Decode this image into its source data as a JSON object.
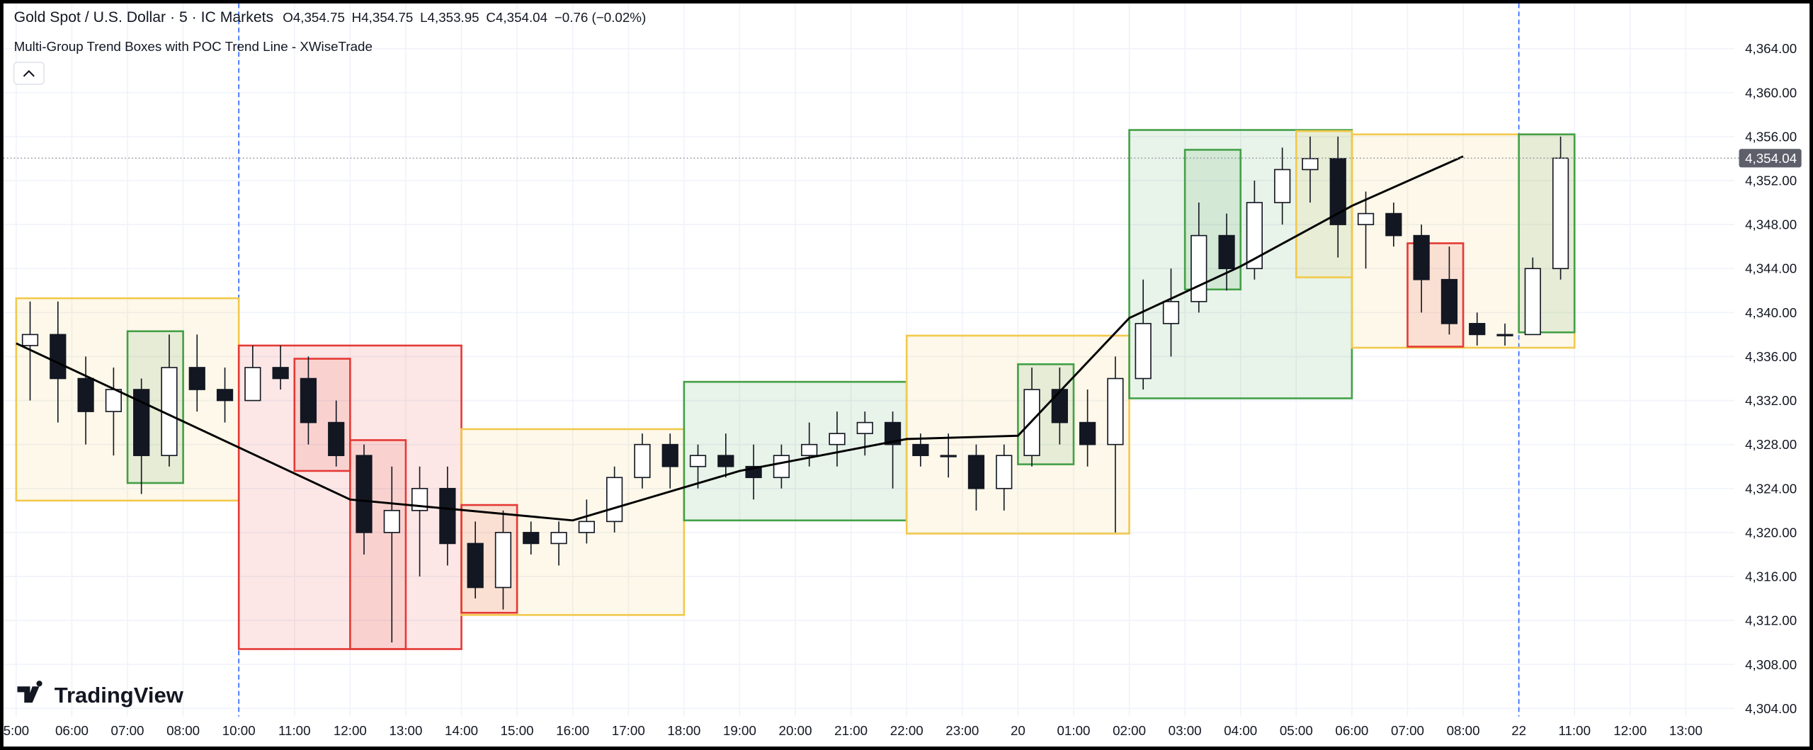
{
  "legend": {
    "title": "Gold Spot / U.S. Dollar · 5 · IC Markets",
    "values": [
      {
        "key": "O",
        "value": "4,354.75"
      },
      {
        "key": "H",
        "value": "4,354.75"
      },
      {
        "key": "L",
        "value": "4,353.95"
      },
      {
        "key": "C",
        "value": "4,354.04"
      }
    ],
    "change": "−0.76 (−0.02%)"
  },
  "indicator": "Multi-Group Trend Boxes with POC Trend Line - XWiseTrade",
  "logo": "TradingView",
  "chart_data": {
    "type": "candlestick",
    "categories": [
      "5:00",
      null,
      "06:00",
      null,
      "07:00",
      null,
      "08:00",
      null,
      "10:00",
      null,
      "11:00",
      null,
      "12:00",
      null,
      "13:00",
      null,
      "14:00",
      null,
      "15:00",
      null,
      "16:00",
      null,
      "17:00",
      null,
      "18:00",
      null,
      "19:00",
      null,
      "20:00",
      null,
      "21:00",
      null,
      "22:00",
      null,
      "23:00",
      null,
      "20",
      null,
      "01:00",
      null,
      "02:00",
      null,
      "03:00",
      null,
      "04:00",
      null,
      "05:00",
      null,
      "06:00",
      null,
      "07:00",
      null,
      "08:00",
      null,
      "22",
      null,
      "11:00",
      null,
      "12:00",
      null,
      "13:00"
    ],
    "open": [
      4337,
      4338,
      4334,
      4331,
      4333,
      4327,
      4335,
      4333,
      4332,
      4335,
      4334,
      4330,
      4327,
      4320,
      4322,
      4324,
      4319,
      4315,
      4320,
      4319,
      4320,
      4321,
      4325,
      4328,
      4326,
      4327,
      4326,
      4325,
      4327,
      4328,
      4329,
      4330,
      4328,
      4327,
      4327,
      4324,
      4327,
      4333,
      4330,
      4328,
      4334,
      4339,
      4341,
      4347,
      4344,
      4350,
      4353,
      4354,
      4348,
      4349,
      4347,
      4343,
      4339,
      4338,
      4338,
      4344,
      null,
      null,
      null,
      null,
      null
    ],
    "high": [
      4341,
      4341,
      4336,
      4335,
      4334,
      4338,
      4338,
      4335,
      4337,
      4337,
      4336,
      4332,
      4328,
      4326,
      4326,
      4326,
      4321,
      4322,
      4321,
      4321,
      4323,
      4326,
      4329,
      4329,
      4328,
      4329,
      4328,
      4328,
      4330,
      4331,
      4331,
      4331,
      4329,
      4329,
      4328,
      4328,
      4335,
      4335,
      4333,
      4336,
      4343,
      4344,
      4350,
      4349,
      4352,
      4355,
      4356,
      4356,
      4351,
      4350,
      4348,
      4346,
      4340,
      4339,
      4345,
      4356,
      null,
      null,
      null,
      null,
      null
    ],
    "low": [
      4332,
      4330,
      4328,
      4327,
      4323.5,
      4326,
      4331,
      4330,
      4332,
      4333,
      4328,
      4326,
      4318,
      4310,
      4316,
      4317,
      4314,
      4313,
      4318,
      4317,
      4319,
      4320,
      4324,
      4324,
      4324,
      4325,
      4323,
      4324,
      4326,
      4326,
      4327,
      4324,
      4326,
      4325,
      4322,
      4322,
      4326,
      4328,
      4326,
      4320,
      4333,
      4336,
      4340,
      4342,
      4343,
      4348,
      4350,
      4345,
      4344,
      4346,
      4340,
      4338,
      4337,
      4337,
      4338,
      4343,
      null,
      null,
      null,
      null,
      null
    ],
    "close": [
      4338,
      4334,
      4331,
      4333,
      4327,
      4335,
      4333,
      4332,
      4335,
      4334,
      4330,
      4327,
      4320,
      4322,
      4324,
      4319,
      4315,
      4320,
      4319,
      4320,
      4321,
      4325,
      4328,
      4326,
      4327,
      4326,
      4325,
      4327,
      4328,
      4329,
      4330,
      4328,
      4327,
      4327,
      4324,
      4327,
      4333,
      4330,
      4328,
      4334,
      4339,
      4341,
      4347,
      4344,
      4350,
      4353,
      4354,
      4348,
      4349,
      4347,
      4343,
      4339,
      4338,
      4338,
      4344,
      4354.04,
      null,
      null,
      null,
      null,
      null
    ],
    "candle_colors": {
      "up": "#ffffff",
      "down": "#131722",
      "wick": "#131722"
    },
    "boxes": [
      {
        "start": 0,
        "end": 7,
        "top": 4341.3,
        "bottom": 4322.9,
        "color": "#f2c94c"
      },
      {
        "start": 4,
        "end": 5,
        "top": 4338.3,
        "bottom": 4324.5,
        "color": "#43a047"
      },
      {
        "start": 8,
        "end": 15,
        "top": 4337.0,
        "bottom": 4309.4,
        "color": "#e53935"
      },
      {
        "start": 10,
        "end": 11,
        "top": 4335.8,
        "bottom": 4325.6,
        "color": "#e53935"
      },
      {
        "start": 12,
        "end": 13,
        "top": 4328.4,
        "bottom": 4309.4,
        "color": "#e53935"
      },
      {
        "start": 16,
        "end": 23,
        "top": 4329.4,
        "bottom": 4312.5,
        "color": "#f2c94c"
      },
      {
        "start": 16,
        "end": 17,
        "top": 4322.5,
        "bottom": 4312.7,
        "color": "#e53935"
      },
      {
        "start": 24,
        "end": 31,
        "top": 4333.7,
        "bottom": 4321.1,
        "color": "#43a047"
      },
      {
        "start": 32,
        "end": 39,
        "top": 4337.9,
        "bottom": 4319.9,
        "color": "#f2c94c"
      },
      {
        "start": 36,
        "end": 37,
        "top": 4335.3,
        "bottom": 4326.2,
        "color": "#43a047"
      },
      {
        "start": 40,
        "end": 47,
        "top": 4356.6,
        "bottom": 4332.2,
        "color": "#43a047"
      },
      {
        "start": 42,
        "end": 43,
        "top": 4354.8,
        "bottom": 4342.1,
        "color": "#43a047"
      },
      {
        "start": 46,
        "end": 47,
        "top": 4356.5,
        "bottom": 4343.2,
        "color": "#f2c94c"
      },
      {
        "start": 48,
        "end": 55,
        "top": 4356.2,
        "bottom": 4336.8,
        "color": "#f2c94c"
      },
      {
        "start": 50,
        "end": 51,
        "top": 4346.3,
        "bottom": 4336.9,
        "color": "#e53935"
      },
      {
        "start": 54,
        "end": 55,
        "top": 4356.2,
        "bottom": 4338.2,
        "color": "#43a047"
      }
    ],
    "poc_line": {
      "x": [
        0,
        12,
        20,
        26,
        32,
        36,
        40,
        44,
        48,
        52
      ],
      "values": [
        4337.2,
        4323.0,
        4321.1,
        4325.6,
        4328.5,
        4328.8,
        4339.5,
        4344.2,
        4349.7,
        4354.2
      ],
      "color": "#000000"
    },
    "session_breaks": [
      8,
      54
    ],
    "last_price": {
      "value": 4354.04,
      "label": "4,354.04"
    },
    "ylim": [
      4303.27,
      4368
    ],
    "yticks": [
      {
        "value": 4304,
        "label": "4,304.00"
      },
      {
        "value": 4308,
        "label": "4,308.00"
      },
      {
        "value": 4312,
        "label": "4,312.00"
      },
      {
        "value": 4316,
        "label": "4,316.00"
      },
      {
        "value": 4320,
        "label": "4,320.00"
      },
      {
        "value": 4324,
        "label": "4,324.00"
      },
      {
        "value": 4328,
        "label": "4,328.00"
      },
      {
        "value": 4332,
        "label": "4,332.00"
      },
      {
        "value": 4336,
        "label": "4,336.00"
      },
      {
        "value": 4340,
        "label": "4,340.00"
      },
      {
        "value": 4344,
        "label": "4,344.00"
      },
      {
        "value": 4348,
        "label": "4,348.00"
      },
      {
        "value": 4352,
        "label": "4,352.00"
      },
      {
        "value": 4356,
        "label": "4,356.00"
      },
      {
        "value": 4360,
        "label": "4,360.00"
      },
      {
        "value": 4364,
        "label": "4,364.00"
      }
    ],
    "grid": true
  }
}
